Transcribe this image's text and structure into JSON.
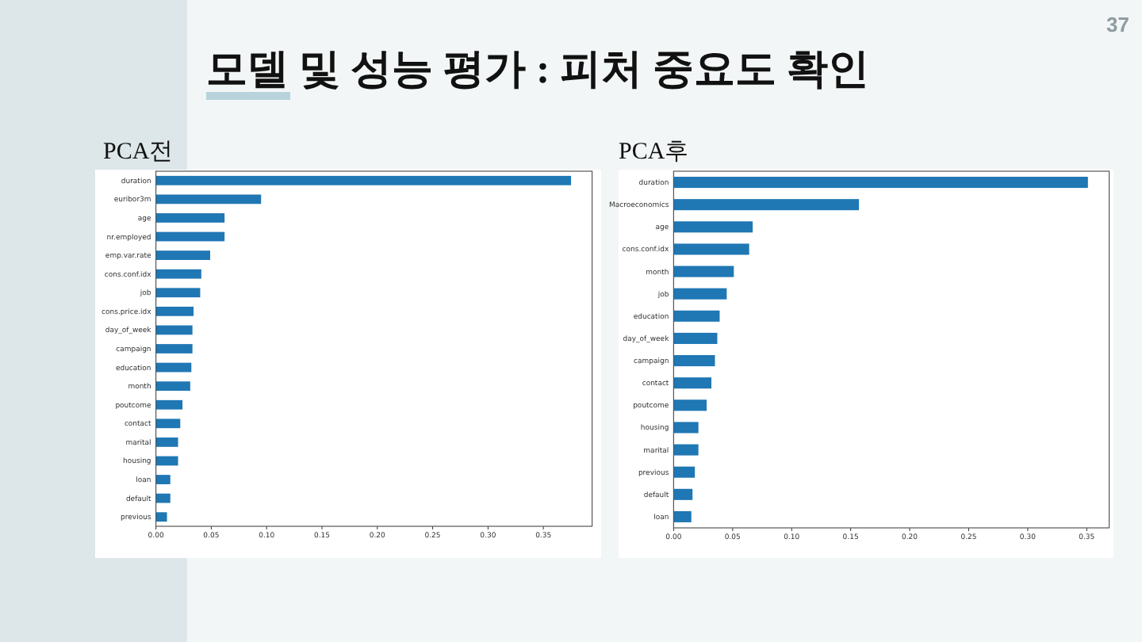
{
  "chart_data": [
    {
      "type": "bar",
      "orientation": "horizontal",
      "title": "PCA전",
      "color": "#1f77b4",
      "annotations": [
        "모델 및 성능 평가 : 피처 중요도 확인",
        "37"
      ],
      "categories": [
        "duration",
        "euribor3m",
        "age",
        "nr.employed",
        "emp.var.rate",
        "cons.conf.idx",
        "job",
        "cons.price.idx",
        "day_of_week",
        "campaign",
        "education",
        "month",
        "poutcome",
        "contact",
        "marital",
        "housing",
        "loan",
        "default",
        "previous"
      ],
      "values": [
        0.375,
        0.095,
        0.062,
        0.062,
        0.049,
        0.041,
        0.04,
        0.034,
        0.033,
        0.033,
        0.032,
        0.031,
        0.024,
        0.022,
        0.02,
        0.02,
        0.013,
        0.013,
        0.01
      ],
      "xlim": [
        0,
        0.394
      ],
      "xticks": [
        {
          "value": 0,
          "label": "0.00"
        },
        {
          "value": 0.05,
          "label": "0.05"
        },
        {
          "value": 0.1,
          "label": "0.10"
        },
        {
          "value": 0.15,
          "label": "0.15"
        },
        {
          "value": 0.2,
          "label": "0.20"
        },
        {
          "value": 0.25,
          "label": "0.25"
        },
        {
          "value": 0.3,
          "label": "0.30"
        },
        {
          "value": 0.35,
          "label": "0.35"
        }
      ]
    },
    {
      "type": "bar",
      "orientation": "horizontal",
      "title": "PCA후",
      "color": "#1f77b4",
      "categories": [
        "duration",
        "Macroeconomics",
        "age",
        "cons.conf.idx",
        "month",
        "job",
        "education",
        "day_of_week",
        "campaign",
        "contact",
        "poutcome",
        "housing",
        "marital",
        "previous",
        "default",
        "loan"
      ],
      "values": [
        0.351,
        0.157,
        0.067,
        0.064,
        0.051,
        0.045,
        0.039,
        0.037,
        0.035,
        0.032,
        0.028,
        0.021,
        0.021,
        0.018,
        0.016,
        0.015
      ],
      "xlim": [
        0,
        0.369
      ],
      "xticks": [
        {
          "value": 0,
          "label": "0.00"
        },
        {
          "value": 0.05,
          "label": "0.05"
        },
        {
          "value": 0.1,
          "label": "0.10"
        },
        {
          "value": 0.15,
          "label": "0.15"
        },
        {
          "value": 0.2,
          "label": "0.20"
        },
        {
          "value": 0.25,
          "label": "0.25"
        },
        {
          "value": 0.3,
          "label": "0.30"
        },
        {
          "value": 0.35,
          "label": "0.35"
        }
      ]
    }
  ]
}
